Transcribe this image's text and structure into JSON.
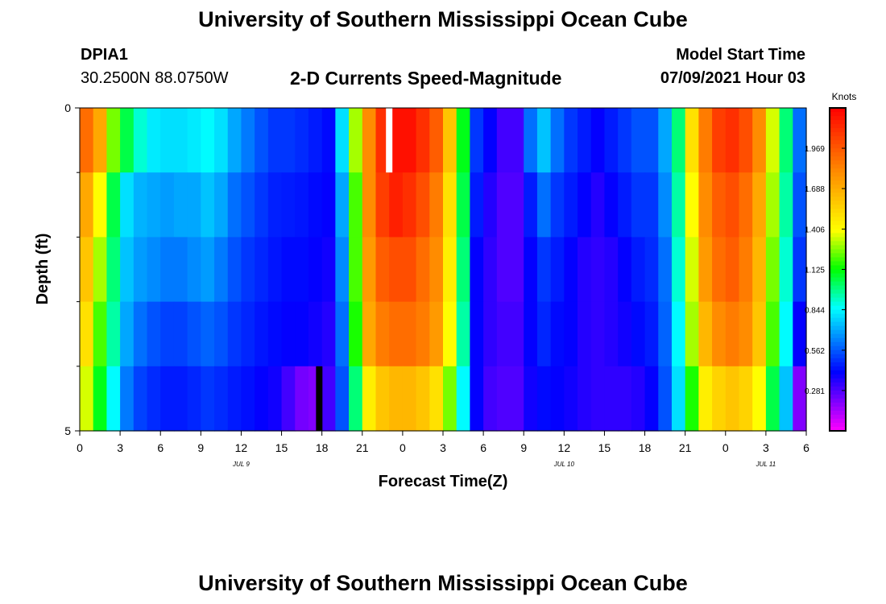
{
  "page": {
    "title_top": "University of Southern Mississippi Ocean Cube",
    "title_bottom": "University of Southern Mississippi Ocean Cube",
    "station_id": "DPIA1",
    "station_coords": "30.2500N  88.0750W",
    "chart_title": "2-D Currents Speed-Magnitude",
    "model_start_label": "Model Start Time",
    "model_start_value": "07/09/2021 Hour 03"
  },
  "chart_data": {
    "type": "heatmap",
    "title": "2-D Currents Speed-Magnitude",
    "xlabel": "Forecast Time(Z)",
    "ylabel": "Depth (ft)",
    "x_ticks": [
      "0",
      "3",
      "6",
      "9",
      "12",
      "15",
      "18",
      "21",
      "0",
      "3",
      "6",
      "9",
      "12",
      "15",
      "18",
      "21",
      "0",
      "3",
      "6"
    ],
    "x_range_hours": [
      0,
      54
    ],
    "date_labels": [
      {
        "text": "JUL 9",
        "hour": 12
      },
      {
        "text": "JUL 10",
        "hour": 36
      },
      {
        "text": "JUL 11",
        "hour": 51
      }
    ],
    "y_ticks": [
      "0",
      "5"
    ],
    "y_range": [
      0,
      5
    ],
    "colorbar": {
      "unit": "Knots",
      "ticks": [
        "1.969",
        "1.688",
        "1.406",
        "1.125",
        "0.844",
        "0.562",
        "0.281"
      ],
      "tick_values": [
        1.969,
        1.688,
        1.406,
        1.125,
        0.844,
        0.562,
        0.281
      ],
      "range": [
        0.0,
        2.25
      ]
    },
    "depth_layers": [
      0.5,
      1.5,
      2.5,
      3.5,
      4.5
    ],
    "time_hours": [
      0,
      1,
      2,
      3,
      4,
      5,
      6,
      7,
      8,
      9,
      10,
      11,
      12,
      13,
      14,
      15,
      16,
      17,
      18,
      19,
      20,
      21,
      22,
      23,
      24,
      25,
      26,
      27,
      28,
      29,
      30,
      31,
      32,
      33,
      34,
      35,
      36,
      37,
      38,
      39,
      40,
      41,
      42,
      43,
      44,
      45,
      46,
      47,
      48,
      49,
      50,
      51,
      52,
      53
    ],
    "speed_knots_by_layer": [
      [
        1.9,
        1.7,
        1.25,
        1.05,
        0.9,
        0.82,
        0.8,
        0.8,
        0.82,
        0.85,
        0.8,
        0.7,
        0.62,
        0.55,
        0.5,
        0.5,
        0.48,
        0.45,
        0.42,
        0.8,
        1.3,
        1.8,
        2.1,
        2.2,
        2.2,
        2.1,
        1.95,
        1.6,
        1.1,
        0.5,
        0.4,
        0.3,
        0.3,
        0.6,
        0.75,
        0.6,
        0.5,
        0.45,
        0.4,
        0.45,
        0.5,
        0.55,
        0.55,
        0.7,
        1.0,
        1.5,
        1.85,
        2.05,
        2.1,
        2.0,
        1.8,
        1.35,
        1.0,
        0.6
      ],
      [
        1.7,
        1.4,
        1.05,
        0.8,
        0.72,
        0.7,
        0.68,
        0.7,
        0.7,
        0.75,
        0.7,
        0.6,
        0.55,
        0.5,
        0.46,
        0.45,
        0.44,
        0.42,
        0.4,
        0.7,
        1.2,
        1.8,
        2.05,
        2.15,
        2.1,
        2.0,
        1.85,
        1.5,
        1.05,
        0.45,
        0.35,
        0.28,
        0.28,
        0.45,
        0.6,
        0.5,
        0.45,
        0.4,
        0.35,
        0.4,
        0.45,
        0.5,
        0.5,
        0.65,
        0.95,
        1.4,
        1.8,
        1.95,
        2.0,
        1.9,
        1.7,
        1.3,
        0.95,
        0.55
      ],
      [
        1.6,
        1.3,
        1.0,
        0.75,
        0.68,
        0.65,
        0.62,
        0.62,
        0.65,
        0.68,
        0.62,
        0.55,
        0.5,
        0.47,
        0.44,
        0.42,
        0.42,
        0.4,
        0.38,
        0.65,
        1.2,
        1.75,
        1.95,
        2.0,
        2.0,
        1.9,
        1.8,
        1.45,
        1.0,
        0.4,
        0.33,
        0.28,
        0.28,
        0.4,
        0.5,
        0.45,
        0.4,
        0.35,
        0.33,
        0.35,
        0.4,
        0.45,
        0.48,
        0.6,
        0.9,
        1.35,
        1.75,
        1.9,
        1.95,
        1.85,
        1.65,
        1.25,
        0.9,
        0.5
      ],
      [
        1.5,
        1.2,
        0.95,
        0.7,
        0.6,
        0.55,
        0.52,
        0.52,
        0.55,
        0.58,
        0.55,
        0.5,
        0.47,
        0.44,
        0.42,
        0.4,
        0.4,
        0.38,
        0.35,
        0.6,
        1.15,
        1.7,
        1.85,
        1.9,
        1.9,
        1.85,
        1.75,
        1.4,
        0.95,
        0.4,
        0.33,
        0.3,
        0.3,
        0.4,
        0.47,
        0.42,
        0.4,
        0.35,
        0.33,
        0.35,
        0.38,
        0.42,
        0.45,
        0.58,
        0.85,
        1.3,
        1.65,
        1.8,
        1.85,
        1.8,
        1.6,
        1.2,
        0.85,
        0.4
      ],
      [
        1.35,
        1.1,
        0.85,
        0.62,
        0.52,
        0.48,
        0.45,
        0.45,
        0.47,
        0.5,
        0.48,
        0.45,
        0.43,
        0.4,
        0.38,
        0.3,
        0.22,
        0.2,
        0.3,
        0.55,
        1.0,
        1.45,
        1.6,
        1.65,
        1.65,
        1.6,
        1.5,
        1.25,
        0.85,
        0.4,
        0.3,
        0.28,
        0.28,
        0.38,
        0.42,
        0.4,
        0.38,
        0.35,
        0.33,
        0.33,
        0.33,
        0.35,
        0.4,
        0.55,
        0.8,
        1.15,
        1.45,
        1.55,
        1.6,
        1.55,
        1.4,
        1.05,
        0.75,
        0.2
      ]
    ],
    "annotations": [
      {
        "type": "marker",
        "color": "#ffffff",
        "hour": 23.0,
        "layer": 0
      },
      {
        "type": "marker",
        "color": "#000000",
        "hour": 17.8,
        "layer": 4
      }
    ]
  }
}
